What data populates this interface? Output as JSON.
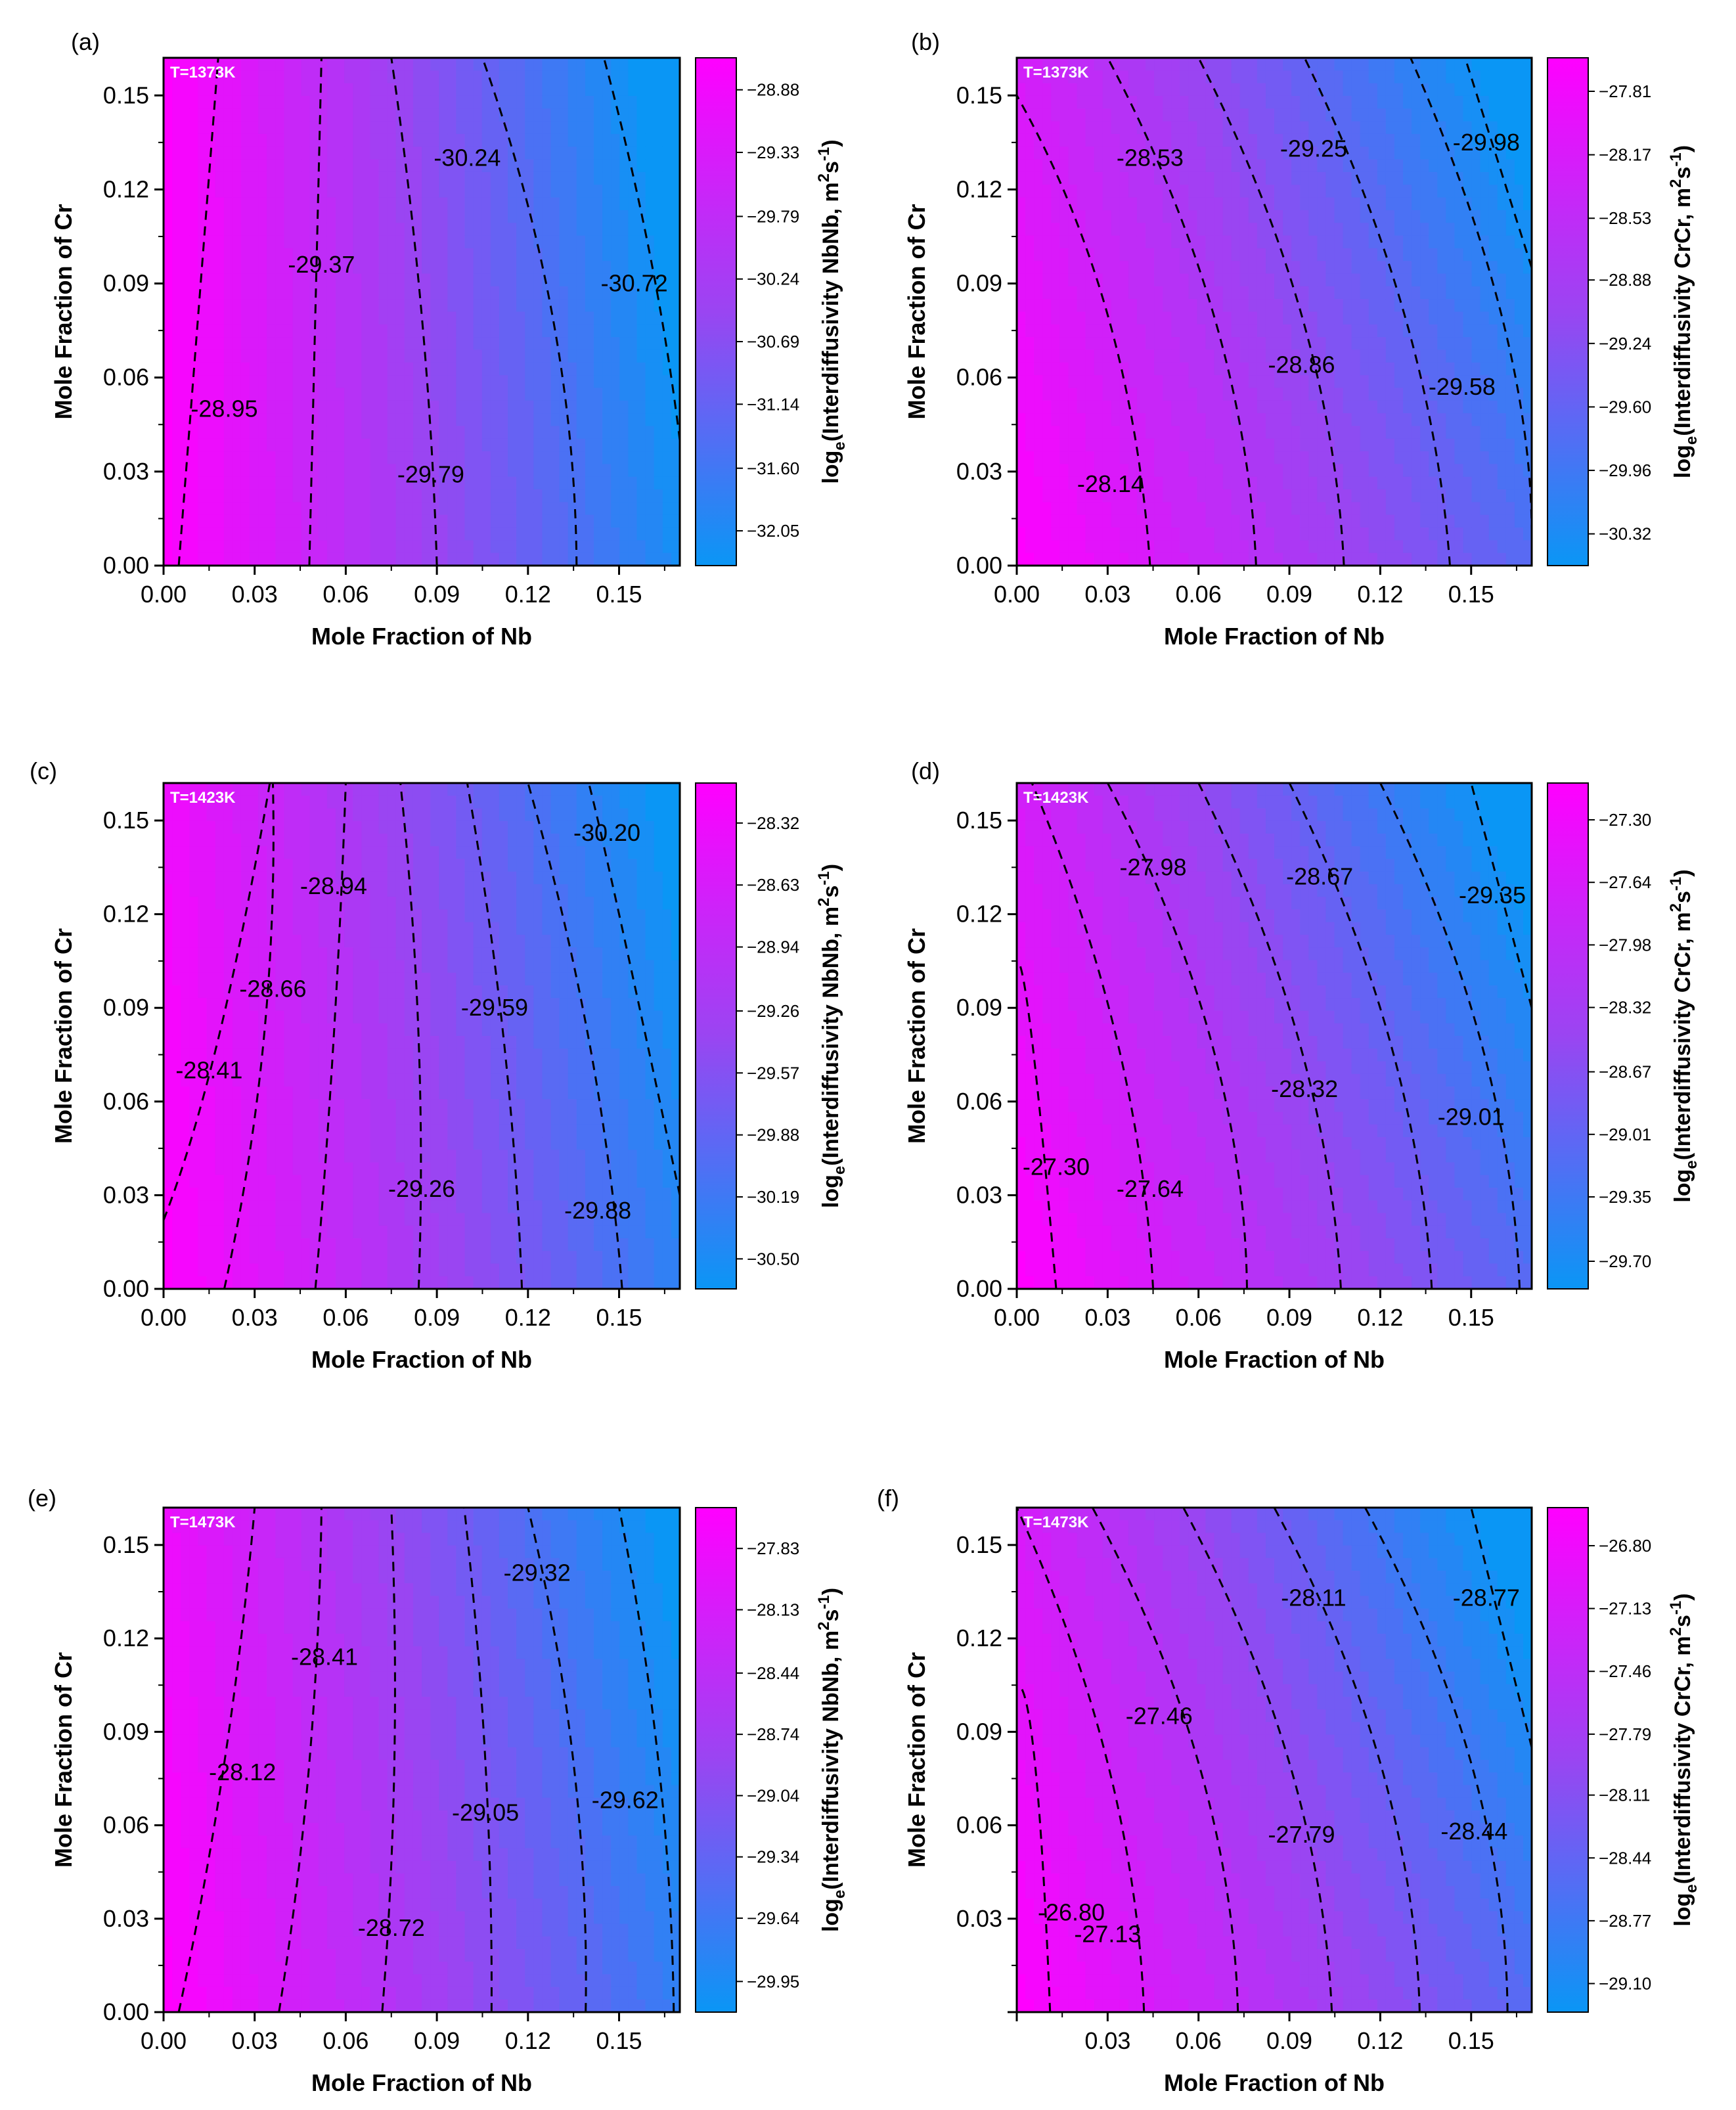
{
  "figure": {
    "x_label": "Mole Fraction of Nb",
    "y_label": "Mole Fraction of  Cr"
  },
  "colors": {
    "high": "#ff00ff",
    "mid": "#9a45f2",
    "low": "#0a96f5",
    "contour": "#000000",
    "temp_label": "#ffffff"
  },
  "chart_data": [
    {
      "id": "a",
      "panel_label": "(a)",
      "type": "contour",
      "temperature_label": "T=1373K",
      "colorbar_label": "log_e(Interdiffusivity NbNb, m^2 s^-1)",
      "colorbar_title_prefix": "log",
      "colorbar_title_sub": "e",
      "colorbar_title_body": "(Interdiffusivity NbNb, m",
      "colorbar_title_sup1": "2",
      "colorbar_title_mid": "s",
      "colorbar_title_sup2": "-1",
      "colorbar_title_end": ")",
      "colorbar_ticks": [
        "-28.88",
        "-29.33",
        "-29.79",
        "-30.24",
        "-30.69",
        "-31.14",
        "-31.60",
        "-32.05"
      ],
      "colorbar_range": [
        -28.65,
        -32.3
      ],
      "xlim": [
        0,
        0.17
      ],
      "ylim": [
        0,
        0.162
      ],
      "x_ticks": [
        "0.00",
        "0.03",
        "0.06",
        "0.09",
        "0.12",
        "0.15"
      ],
      "y_ticks": [
        "0.00",
        "0.03",
        "0.06",
        "0.09",
        "0.12",
        "0.15"
      ],
      "field": {
        "max": -28.7,
        "min": -32.3,
        "x_weight": 1.0,
        "y_weight": 0.0,
        "curve": 0.4
      },
      "contour_lines": [
        [
          [
            0.005,
            0
          ],
          [
            0.018,
            0.162
          ]
        ],
        [
          [
            0.048,
            0
          ],
          [
            0.052,
            0.162
          ]
        ],
        [
          [
            0.09,
            0
          ],
          [
            0.085,
            0.08
          ],
          [
            0.075,
            0.162
          ]
        ],
        [
          [
            0.136,
            0
          ],
          [
            0.128,
            0.08
          ],
          [
            0.105,
            0.162
          ]
        ],
        [
          [
            0.17,
            0.04
          ],
          [
            0.16,
            0.1
          ],
          [
            0.145,
            0.162
          ]
        ]
      ],
      "contour_labels": [
        {
          "text": "-28.95",
          "x": 0.02,
          "y": 0.05
        },
        {
          "text": "-29.37",
          "x": 0.052,
          "y": 0.096
        },
        {
          "text": "-29.79",
          "x": 0.088,
          "y": 0.029
        },
        {
          "text": "-30.24",
          "x": 0.1,
          "y": 0.13
        },
        {
          "text": "-30.72",
          "x": 0.155,
          "y": 0.09
        }
      ]
    },
    {
      "id": "b",
      "panel_label": "(b)",
      "type": "contour",
      "temperature_label": "T=1373K",
      "colorbar_label": "log_e(Interdiffusivity CrCr, m^2 s^-1)",
      "colorbar_title_prefix": "log",
      "colorbar_title_sub": "e",
      "colorbar_title_body": "(Interdiffusivity CrCr, m",
      "colorbar_title_sup1": "2",
      "colorbar_title_mid": "s",
      "colorbar_title_sup2": "-1",
      "colorbar_title_end": ")",
      "colorbar_ticks": [
        "-27.81",
        "-28.17",
        "-28.53",
        "-28.88",
        "-29.24",
        "-29.60",
        "-29.96",
        "-30.32"
      ],
      "colorbar_range": [
        -27.62,
        -30.5
      ],
      "xlim": [
        0,
        0.17
      ],
      "ylim": [
        0,
        0.162
      ],
      "x_ticks": [
        "0.00",
        "0.03",
        "0.06",
        "0.09",
        "0.12",
        "0.15"
      ],
      "y_ticks": [
        "0.00",
        "0.03",
        "0.06",
        "0.09",
        "0.12",
        "0.15"
      ],
      "field": {
        "max": -27.62,
        "min": -30.5,
        "x_weight": 0.78,
        "y_weight": 0.22,
        "curve": 0.5
      },
      "contour_lines": [
        [
          [
            0.044,
            0
          ],
          [
            0.03,
            0.08
          ],
          [
            0.0,
            0.15
          ]
        ],
        [
          [
            0.079,
            0
          ],
          [
            0.065,
            0.08
          ],
          [
            0.03,
            0.162
          ]
        ],
        [
          [
            0.108,
            0
          ],
          [
            0.094,
            0.08
          ],
          [
            0.06,
            0.162
          ]
        ],
        [
          [
            0.143,
            0
          ],
          [
            0.128,
            0.08
          ],
          [
            0.095,
            0.162
          ]
        ],
        [
          [
            0.17,
            0.01
          ],
          [
            0.16,
            0.08
          ],
          [
            0.13,
            0.162
          ]
        ],
        [
          [
            0.17,
            0.095
          ],
          [
            0.148,
            0.162
          ]
        ]
      ],
      "contour_labels": [
        {
          "text": "-28.14",
          "x": 0.031,
          "y": 0.026
        },
        {
          "text": "-28.53",
          "x": 0.044,
          "y": 0.13
        },
        {
          "text": "-28.86",
          "x": 0.094,
          "y": 0.064
        },
        {
          "text": "-29.25",
          "x": 0.098,
          "y": 0.133
        },
        {
          "text": "-29.58",
          "x": 0.147,
          "y": 0.057
        },
        {
          "text": "-29.98",
          "x": 0.155,
          "y": 0.135
        }
      ]
    },
    {
      "id": "c",
      "panel_label": "(c)",
      "type": "contour",
      "temperature_label": "T=1423K",
      "colorbar_label": "log_e(Interdiffusivity NbNb, m^2 s^-1)",
      "colorbar_title_prefix": "log",
      "colorbar_title_sub": "e",
      "colorbar_title_body": "(Interdiffusivity NbNb, m",
      "colorbar_title_sup1": "2",
      "colorbar_title_mid": "s",
      "colorbar_title_sup2": "-1",
      "colorbar_title_end": ")",
      "colorbar_ticks": [
        "-28.32",
        "-28.63",
        "-28.94",
        "-29.26",
        "-29.57",
        "-29.88",
        "-30.19",
        "-30.50"
      ],
      "colorbar_range": [
        -28.12,
        -30.65
      ],
      "xlim": [
        0,
        0.17
      ],
      "ylim": [
        0,
        0.162
      ],
      "x_ticks": [
        "0.00",
        "0.03",
        "0.06",
        "0.09",
        "0.12",
        "0.15"
      ],
      "y_ticks": [
        "0.00",
        "0.03",
        "0.06",
        "0.09",
        "0.12",
        "0.15"
      ],
      "field": {
        "max": -28.15,
        "min": -30.65,
        "x_weight": 0.92,
        "y_weight": 0.08,
        "curve": 0.3
      },
      "contour_lines": [
        [
          [
            0.0,
            0.022
          ],
          [
            0.018,
            0.08
          ],
          [
            0.035,
            0.162
          ]
        ],
        [
          [
            0.02,
            0
          ],
          [
            0.033,
            0.08
          ],
          [
            0.036,
            0.162
          ]
        ],
        [
          [
            0.05,
            0
          ],
          [
            0.056,
            0.08
          ],
          [
            0.06,
            0.162
          ]
        ],
        [
          [
            0.084,
            0
          ],
          [
            0.084,
            0.08
          ],
          [
            0.078,
            0.162
          ]
        ],
        [
          [
            0.118,
            0
          ],
          [
            0.112,
            0.08
          ],
          [
            0.1,
            0.162
          ]
        ],
        [
          [
            0.151,
            0
          ],
          [
            0.14,
            0.08
          ],
          [
            0.12,
            0.162
          ]
        ],
        [
          [
            0.17,
            0.03
          ],
          [
            0.15,
            0.12
          ],
          [
            0.14,
            0.162
          ]
        ]
      ],
      "contour_labels": [
        {
          "text": "-28.41",
          "x": 0.015,
          "y": 0.07
        },
        {
          "text": "-28.66",
          "x": 0.036,
          "y": 0.096
        },
        {
          "text": "-28.94",
          "x": 0.056,
          "y": 0.129
        },
        {
          "text": "-29.26",
          "x": 0.085,
          "y": 0.032
        },
        {
          "text": "-29.59",
          "x": 0.109,
          "y": 0.09
        },
        {
          "text": "-29.88",
          "x": 0.143,
          "y": 0.025
        },
        {
          "text": "-30.20",
          "x": 0.146,
          "y": 0.146
        }
      ]
    },
    {
      "id": "d",
      "panel_label": "(d)",
      "type": "contour",
      "temperature_label": "T=1423K",
      "colorbar_label": "log_e(Interdiffusivity CrCr, m^2 s^-1)",
      "colorbar_title_prefix": "log",
      "colorbar_title_sub": "e",
      "colorbar_title_body": "(Interdiffusivity CrCr, m",
      "colorbar_title_sup1": "2",
      "colorbar_title_mid": "s",
      "colorbar_title_sup2": "-1",
      "colorbar_title_end": ")",
      "colorbar_ticks": [
        "-27.30",
        "-27.64",
        "-27.98",
        "-28.32",
        "-28.67",
        "-29.01",
        "-29.35",
        "-29.70"
      ],
      "colorbar_range": [
        -27.1,
        -29.85
      ],
      "xlim": [
        0,
        0.17
      ],
      "ylim": [
        0,
        0.162
      ],
      "x_ticks": [
        "0.00",
        "0.03",
        "0.06",
        "0.09",
        "0.12",
        "0.15"
      ],
      "y_ticks": [
        "0.00",
        "0.03",
        "0.06",
        "0.09",
        "0.12",
        "0.15"
      ],
      "field": {
        "max": -27.1,
        "min": -29.85,
        "x_weight": 0.78,
        "y_weight": 0.22,
        "curve": 0.5
      },
      "contour_lines": [
        [
          [
            0.013,
            0
          ],
          [
            0.005,
            0.08
          ],
          [
            0.0,
            0.105
          ]
        ],
        [
          [
            0.045,
            0
          ],
          [
            0.033,
            0.08
          ],
          [
            0.005,
            0.162
          ]
        ],
        [
          [
            0.076,
            0
          ],
          [
            0.064,
            0.08
          ],
          [
            0.03,
            0.162
          ]
        ],
        [
          [
            0.107,
            0
          ],
          [
            0.093,
            0.08
          ],
          [
            0.06,
            0.162
          ]
        ],
        [
          [
            0.137,
            0
          ],
          [
            0.123,
            0.08
          ],
          [
            0.09,
            0.162
          ]
        ],
        [
          [
            0.166,
            0
          ],
          [
            0.153,
            0.08
          ],
          [
            0.12,
            0.162
          ]
        ],
        [
          [
            0.17,
            0.09
          ],
          [
            0.15,
            0.162
          ]
        ]
      ],
      "contour_labels": [
        {
          "text": "-27.30",
          "x": 0.013,
          "y": 0.039
        },
        {
          "text": "-27.64",
          "x": 0.044,
          "y": 0.032
        },
        {
          "text": "-27.98",
          "x": 0.045,
          "y": 0.135
        },
        {
          "text": "-28.32",
          "x": 0.095,
          "y": 0.064
        },
        {
          "text": "-28.67",
          "x": 0.1,
          "y": 0.132
        },
        {
          "text": "-29.01",
          "x": 0.15,
          "y": 0.055
        },
        {
          "text": "-29.35",
          "x": 0.157,
          "y": 0.126
        }
      ]
    },
    {
      "id": "e",
      "panel_label": "(e)",
      "type": "contour",
      "temperature_label": "T=1473K",
      "colorbar_label": "log_e(Interdiffusivity NbNb, m^2 s^-1)",
      "colorbar_title_prefix": "log",
      "colorbar_title_sub": "e",
      "colorbar_title_body": "(Interdiffusivity NbNb, m",
      "colorbar_title_sup1": "2",
      "colorbar_title_mid": "s",
      "colorbar_title_sup2": "-1",
      "colorbar_title_end": ")",
      "colorbar_ticks": [
        "-27.83",
        "-28.13",
        "-28.44",
        "-28.74",
        "-29.04",
        "-29.34",
        "-29.64",
        "-29.95"
      ],
      "colorbar_range": [
        -27.63,
        -30.1
      ],
      "xlim": [
        0,
        0.17
      ],
      "ylim": [
        0,
        0.162
      ],
      "x_ticks": [
        "0.00",
        "0.03",
        "0.06",
        "0.09",
        "0.12",
        "0.15"
      ],
      "y_ticks": [
        "0.00",
        "0.03",
        "0.06",
        "0.09",
        "0.12",
        "0.15"
      ],
      "field": {
        "max": -27.7,
        "min": -30.05,
        "x_weight": 0.9,
        "y_weight": 0.1,
        "curve": 0.3
      },
      "contour_lines": [
        [
          [
            0.005,
            0
          ],
          [
            0.02,
            0.08
          ],
          [
            0.03,
            0.162
          ]
        ],
        [
          [
            0.038,
            0
          ],
          [
            0.048,
            0.08
          ],
          [
            0.052,
            0.162
          ]
        ],
        [
          [
            0.072,
            0
          ],
          [
            0.076,
            0.08
          ],
          [
            0.075,
            0.162
          ]
        ],
        [
          [
            0.108,
            0
          ],
          [
            0.106,
            0.08
          ],
          [
            0.099,
            0.162
          ]
        ],
        [
          [
            0.139,
            0
          ],
          [
            0.135,
            0.08
          ],
          [
            0.12,
            0.162
          ]
        ],
        [
          [
            0.168,
            0
          ],
          [
            0.163,
            0.08
          ],
          [
            0.15,
            0.162
          ]
        ]
      ],
      "contour_labels": [
        {
          "text": "-28.12",
          "x": 0.026,
          "y": 0.077
        },
        {
          "text": "-28.41",
          "x": 0.053,
          "y": 0.114
        },
        {
          "text": "-28.72",
          "x": 0.075,
          "y": 0.027
        },
        {
          "text": "-29.05",
          "x": 0.106,
          "y": 0.064
        },
        {
          "text": "-29.32",
          "x": 0.123,
          "y": 0.141
        },
        {
          "text": "-29.62",
          "x": 0.152,
          "y": 0.068
        }
      ]
    },
    {
      "id": "f",
      "panel_label": "(f)",
      "type": "contour",
      "temperature_label": "T=1473K",
      "colorbar_label": "log_e(Interdiffusivity CrCr, m^2 s^-1)",
      "colorbar_title_prefix": "log",
      "colorbar_title_sub": "e",
      "colorbar_title_body": "(Interdiffusivity CrCr, m",
      "colorbar_title_sup1": "2",
      "colorbar_title_mid": "s",
      "colorbar_title_sup2": "-1",
      "colorbar_title_end": ")",
      "colorbar_ticks": [
        "-26.80",
        "-27.13",
        "-27.46",
        "-27.79",
        "-28.11",
        "-28.44",
        "-28.77",
        "-29.10"
      ],
      "colorbar_range": [
        -26.6,
        -29.25
      ],
      "xlim": [
        0,
        0.17
      ],
      "ylim": [
        0,
        0.162
      ],
      "x_ticks": [
        "",
        "0.03",
        "0.06",
        "0.09",
        "0.12",
        "0.15"
      ],
      "y_ticks": [
        "",
        "0.03",
        "0.06",
        "0.09",
        "0.12",
        "0.15"
      ],
      "field": {
        "max": -26.6,
        "min": -29.25,
        "x_weight": 0.78,
        "y_weight": 0.22,
        "curve": 0.5
      },
      "contour_lines": [
        [
          [
            0.011,
            0
          ],
          [
            0.006,
            0.08
          ],
          [
            0.0,
            0.105
          ]
        ],
        [
          [
            0.042,
            0
          ],
          [
            0.03,
            0.08
          ],
          [
            0.0,
            0.162
          ]
        ],
        [
          [
            0.073,
            0
          ],
          [
            0.06,
            0.08
          ],
          [
            0.025,
            0.162
          ]
        ],
        [
          [
            0.104,
            0
          ],
          [
            0.09,
            0.08
          ],
          [
            0.055,
            0.162
          ]
        ],
        [
          [
            0.133,
            0
          ],
          [
            0.12,
            0.08
          ],
          [
            0.085,
            0.162
          ]
        ],
        [
          [
            0.162,
            0
          ],
          [
            0.15,
            0.08
          ],
          [
            0.115,
            0.162
          ]
        ],
        [
          [
            0.17,
            0.085
          ],
          [
            0.15,
            0.162
          ]
        ]
      ],
      "contour_labels": [
        {
          "text": "-26.80",
          "x": 0.018,
          "y": 0.032
        },
        {
          "text": "-27.13",
          "x": 0.03,
          "y": 0.025
        },
        {
          "text": "-27.46",
          "x": 0.047,
          "y": 0.095
        },
        {
          "text": "-27.79",
          "x": 0.094,
          "y": 0.057
        },
        {
          "text": "-28.11",
          "x": 0.098,
          "y": 0.133
        },
        {
          "text": "-28.44",
          "x": 0.151,
          "y": 0.058
        },
        {
          "text": "-28.77",
          "x": 0.155,
          "y": 0.133
        }
      ]
    }
  ]
}
